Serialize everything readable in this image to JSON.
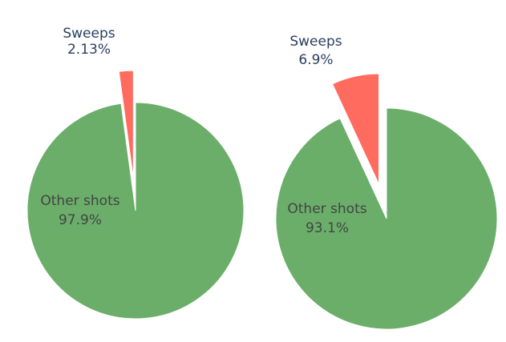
{
  "colors": {
    "other_shots": "#6aae6a",
    "sweeps": "#ff6b5f",
    "label_dark": "#2a3f5f",
    "label_inside": "#444444",
    "background": "#ffffff"
  },
  "chart_data": [
    {
      "type": "pie",
      "title": "",
      "slices": [
        {
          "label": "Sweeps",
          "value": 2.13,
          "display": "2.13%",
          "pulled": true,
          "color": "#ff6b5f"
        },
        {
          "label": "Other shots",
          "value": 97.87,
          "display": "97.9%",
          "pulled": false,
          "color": "#6aae6a"
        }
      ],
      "direction": "clockwise",
      "start": "top",
      "legend": "none"
    },
    {
      "type": "pie",
      "title": "",
      "slices": [
        {
          "label": "Sweeps",
          "value": 6.9,
          "display": "6.9%",
          "pulled": true,
          "color": "#ff6b5f"
        },
        {
          "label": "Other shots",
          "value": 93.1,
          "display": "93.1%",
          "pulled": false,
          "color": "#6aae6a"
        }
      ],
      "direction": "clockwise",
      "start": "top",
      "legend": "none"
    }
  ]
}
